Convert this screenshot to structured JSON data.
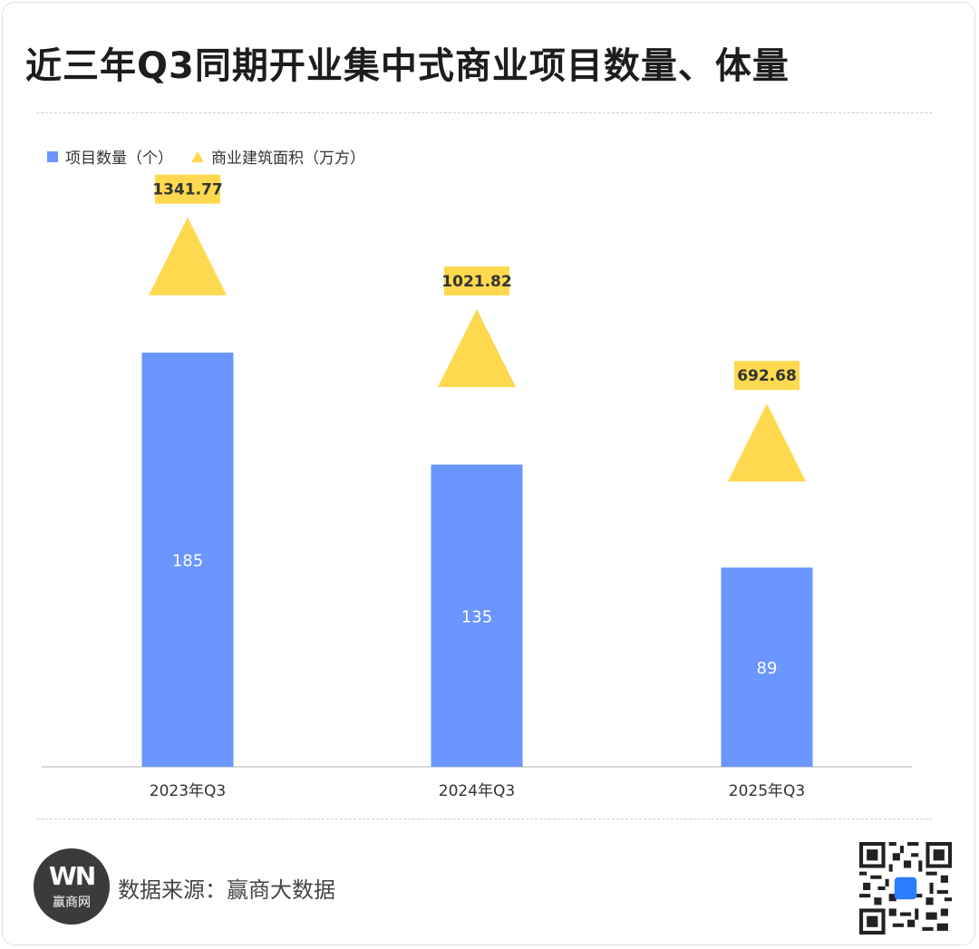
{
  "title": "近三年Q3同期开业集中式商业项目数量、体量",
  "legend": {
    "bar_label": "项目数量（个）",
    "triangle_label": "商业建筑面积（万方）"
  },
  "colors": {
    "bar": "#6b95ff",
    "triangle": "#fed94f",
    "label_box": "#fed94f"
  },
  "chart_data": {
    "type": "bar",
    "categories": [
      "2023年Q3",
      "2024年Q3",
      "2025年Q3"
    ],
    "series": [
      {
        "name": "项目数量（个）",
        "type": "bar",
        "values": [
          185,
          135,
          89
        ]
      },
      {
        "name": "商业建筑面积（万方）",
        "type": "scatter",
        "marker": "triangle",
        "values": [
          1341.77,
          1021.82,
          692.68
        ]
      }
    ],
    "labels": {
      "bars": [
        "185",
        "135",
        "89"
      ],
      "triangles": [
        "1341.77",
        "1021.82",
        "692.68"
      ]
    },
    "title": "近三年Q3同期开业集中式商业项目数量、体量",
    "xlabel": "",
    "ylabel": "",
    "legend_position": "top-left",
    "grid": false
  },
  "footer": {
    "logo_mark": "WN",
    "logo_text": "赢商网",
    "source": "数据来源：赢商大数据"
  },
  "icons": {
    "logo": "winshang-logo-icon",
    "qr": "qr-code-icon"
  }
}
